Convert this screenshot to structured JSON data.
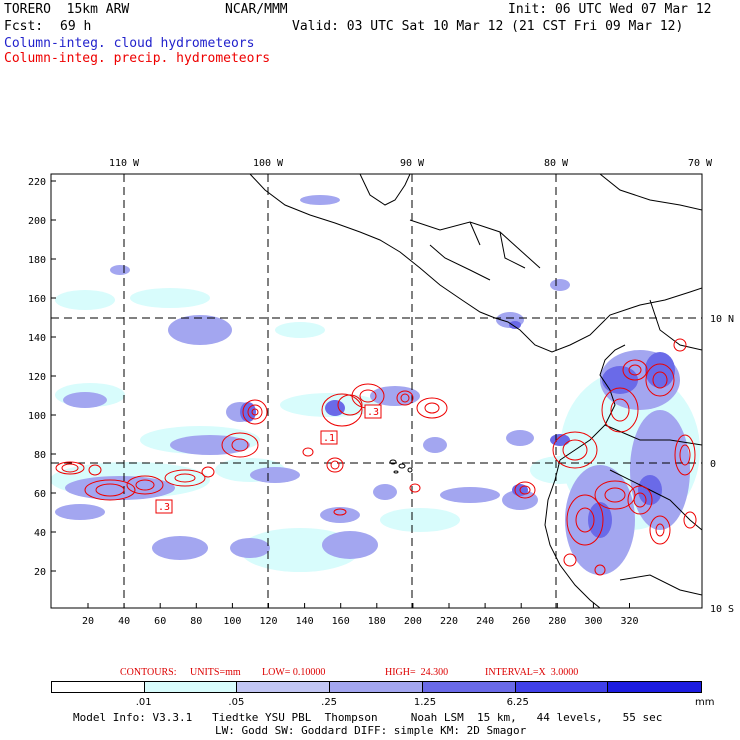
{
  "header": {
    "model": "TORERO  15km ARW",
    "org": "NCAR/MMM",
    "init": "Init: 06 UTC Wed 07 Mar 12",
    "fcst_label": "Fcst:",
    "fcst_hours": "69 h",
    "valid": "Valid: 03 UTC Sat 10 Mar 12 (21 CST Fri 09 Mar 12)",
    "legend_cloud": "Column-integ. cloud hydrometeors",
    "legend_precip": "Column-integ. precip. hydrometeors"
  },
  "map": {
    "top_lon_labels": [
      "110 W",
      "100 W",
      "90 W",
      "80 W",
      "70 W"
    ],
    "right_lat_labels": [
      "10 N",
      "0",
      "10 S"
    ],
    "y_ticks": [
      "220",
      "200",
      "180",
      "160",
      "140",
      "120",
      "100",
      "80",
      "60",
      "40",
      "20"
    ],
    "x_ticks": [
      "20",
      "40",
      "60",
      "80",
      "100",
      "120",
      "140",
      "160",
      "180",
      "200",
      "220",
      "240",
      "260",
      "280",
      "300",
      "320"
    ],
    "contour_labels": [
      ".1",
      ".3",
      ".3"
    ]
  },
  "contours_line": {
    "contours": "CONTOURS:",
    "units": "UNITS=mm",
    "low": "LOW= 0.10000",
    "high": "HIGH=  24.300",
    "interval": "INTERVAL=X  3.0000"
  },
  "colorbar": {
    "colors": [
      "#ffffff",
      "#d8fcfc",
      "#c2c6f4",
      "#a3a6f0",
      "#6a6ae8",
      "#4040e8",
      "#1c1ce0"
    ],
    "labels": [
      ".01",
      ".05",
      ".25",
      "1.25",
      "6.25"
    ],
    "units": "mm"
  },
  "footer": {
    "line1": "Model Info: V3.3.1   Tiedtke YSU PBL  Thompson     Noah LSM  15 km,   44 levels,   55 sec",
    "line2": "LW: Godd SW: Goddard DIFF: simple KM: 2D Smagor"
  }
}
